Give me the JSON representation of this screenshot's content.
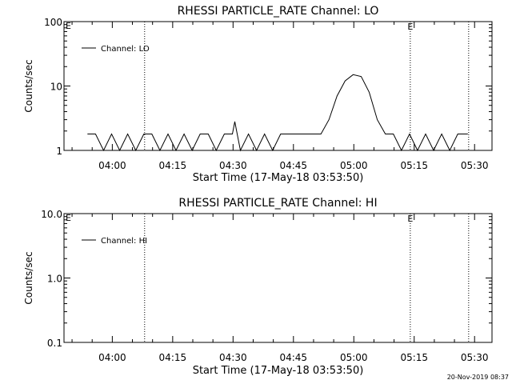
{
  "chart_data": [
    {
      "type": "line",
      "title": "RHESSI PARTICLE_RATE Channel: LO",
      "xlabel": "Start Time (17-May-18 03:53:50)",
      "ylabel": "Counts/sec",
      "yscale": "log",
      "ylim": [
        1,
        100
      ],
      "yticks": [
        {
          "value": 1,
          "label": "1"
        },
        {
          "value": 10,
          "label": "10"
        },
        {
          "value": 100,
          "label": "100"
        }
      ],
      "xlim_min": [
        -5.83,
        61.17
      ],
      "xticks": [
        {
          "value": 6.17,
          "label": "04:00"
        },
        {
          "value": 21.17,
          "label": "04:15"
        },
        {
          "value": 36.17,
          "label": "04:30"
        },
        {
          "value": 51.17,
          "label": "04:45"
        },
        {
          "value": 66.17,
          "label": "05:00"
        },
        {
          "value": 81.17,
          "label": "05:15"
        },
        {
          "value": 96.17,
          "label": "05:30"
        }
      ],
      "markers": [
        {
          "x": 14.2,
          "label": ""
        },
        {
          "x": 80.2,
          "label": "E"
        },
        {
          "x": 94.7,
          "label": ""
        }
      ],
      "left_marker": "E",
      "legend": "Channel: LO",
      "series": [
        {
          "name": "Channel: LO",
          "x": [
            0,
            2,
            4,
            6,
            8,
            10,
            12,
            14,
            16,
            18,
            20,
            22,
            24,
            26,
            28,
            30,
            32,
            34,
            36,
            36.6,
            37.2,
            38,
            40,
            42,
            44,
            46,
            48,
            50,
            52,
            54,
            56,
            58,
            60,
            62,
            64,
            66,
            68,
            70,
            72,
            74,
            76,
            78,
            80,
            82,
            84,
            86,
            88,
            90,
            92,
            94.5
          ],
          "y": [
            1.8,
            1.8,
            1,
            1.8,
            1,
            1.8,
            1,
            1.8,
            1.8,
            1,
            1.8,
            1,
            1.8,
            1,
            1.8,
            1.8,
            1,
            1.8,
            1.8,
            2.8,
            1.8,
            1,
            1.8,
            1,
            1.8,
            1,
            1.8,
            1.8,
            1.8,
            1.8,
            1.8,
            1.8,
            3,
            7,
            12,
            15,
            14,
            8,
            3,
            1.8,
            1.8,
            1,
            1.8,
            1,
            1.8,
            1,
            1.8,
            1,
            1.8,
            1.8
          ]
        }
      ]
    },
    {
      "type": "line",
      "title": "RHESSI PARTICLE_RATE Channel: HI",
      "xlabel": "Start Time (17-May-18 03:53:50)",
      "ylabel": "Counts/sec",
      "yscale": "log",
      "ylim": [
        0.1,
        10
      ],
      "yticks": [
        {
          "value": 0.1,
          "label": "0.1"
        },
        {
          "value": 1,
          "label": "1.0"
        },
        {
          "value": 10,
          "label": "10.0"
        }
      ],
      "xticks": [
        {
          "value": 6.17,
          "label": "04:00"
        },
        {
          "value": 21.17,
          "label": "04:15"
        },
        {
          "value": 36.17,
          "label": "04:30"
        },
        {
          "value": 51.17,
          "label": "04:45"
        },
        {
          "value": 66.17,
          "label": "05:00"
        },
        {
          "value": 81.17,
          "label": "05:15"
        },
        {
          "value": 96.17,
          "label": "05:30"
        }
      ],
      "markers": [
        {
          "x": 14.2,
          "label": ""
        },
        {
          "x": 80.2,
          "label": "E"
        },
        {
          "x": 94.7,
          "label": ""
        }
      ],
      "left_marker": "E",
      "legend": "Channel: HI",
      "series": [
        {
          "name": "Channel: HI",
          "x": [],
          "y": []
        }
      ]
    }
  ],
  "timestamp": "20-Nov-2019 08:37"
}
